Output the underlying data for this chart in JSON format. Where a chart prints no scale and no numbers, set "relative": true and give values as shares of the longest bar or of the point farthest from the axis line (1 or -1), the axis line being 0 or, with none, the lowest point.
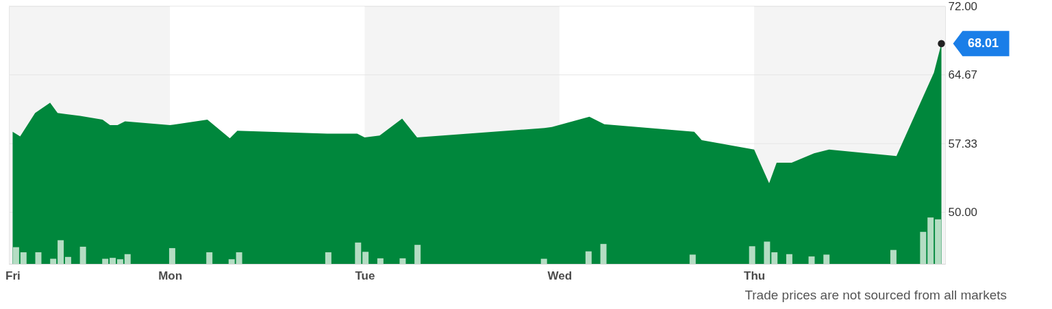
{
  "chart_data": [
    {
      "type": "area",
      "color": "#00873c",
      "ylim": [
        44.5,
        72
      ],
      "yticks": [
        {
          "value": 50,
          "label": "50.00"
        },
        57.33,
        64.67,
        {
          "value": 72,
          "label": "72.00"
        }
      ],
      "grid": "y",
      "categories": [
        "Fri",
        null,
        null,
        null,
        null,
        null,
        null,
        null,
        null,
        null,
        null,
        null,
        null,
        null,
        null,
        null,
        null,
        null,
        null,
        null,
        null,
        "Mon",
        null,
        null,
        null,
        null,
        null,
        null,
        null,
        null,
        null,
        null,
        null,
        null,
        null,
        null,
        null,
        null,
        null,
        null,
        null,
        null,
        null,
        null,
        null,
        null,
        null,
        "Tue",
        null,
        null,
        null,
        null,
        null,
        null,
        null,
        null,
        null,
        null,
        null,
        null,
        null,
        null,
        null,
        null,
        null,
        null,
        null,
        null,
        null,
        null,
        null,
        null,
        null,
        "Wed",
        null,
        null,
        null,
        null,
        null,
        null,
        null,
        null,
        null,
        null,
        null,
        null,
        null,
        null,
        null,
        null,
        null,
        null,
        null,
        null,
        null,
        null,
        null,
        null,
        null,
        "Thu",
        null,
        null,
        null,
        null,
        null,
        null,
        null,
        null,
        null,
        null,
        null,
        null,
        null,
        null,
        null,
        null,
        null,
        null,
        null,
        null,
        null,
        null,
        null,
        null,
        null
      ],
      "values": [
        58.6,
        58.1,
        null,
        60.6,
        null,
        61.7,
        60.6,
        60.5,
        null,
        60.3,
        null,
        null,
        59.9,
        59.3,
        59.3,
        59.7,
        null,
        null,
        null,
        null,
        null,
        59.3,
        null,
        null,
        null,
        null,
        59.9,
        null,
        null,
        57.9,
        58.7,
        null,
        null,
        null,
        null,
        null,
        null,
        null,
        null,
        null,
        null,
        null,
        58.4,
        null,
        null,
        null,
        58.4,
        58.0,
        null,
        58.2,
        null,
        null,
        60.0,
        null,
        58.0,
        null,
        null,
        null,
        null,
        null,
        null,
        null,
        null,
        null,
        null,
        null,
        null,
        null,
        null,
        null,
        null,
        59.0,
        59.1,
        null,
        null,
        null,
        null,
        60.2,
        null,
        59.4,
        null,
        null,
        null,
        null,
        null,
        null,
        null,
        null,
        null,
        null,
        null,
        58.6,
        57.7,
        null,
        null,
        null,
        null,
        null,
        null,
        56.7,
        null,
        53.1,
        55.3,
        null,
        55.3,
        null,
        null,
        56.3,
        null,
        56.7,
        null,
        null,
        null,
        null,
        null,
        null,
        null,
        null,
        56.0,
        null,
        null,
        null,
        null,
        64.9,
        68.01
      ],
      "value_labels": [
        null,
        null,
        null,
        null,
        null,
        null,
        null,
        null,
        null,
        null,
        null,
        null,
        null,
        null,
        null,
        null,
        null,
        null,
        null,
        null,
        null,
        null,
        null,
        null,
        null,
        null,
        null,
        null,
        null,
        null,
        null,
        null,
        null,
        null,
        null,
        null,
        null,
        null,
        null,
        null,
        null,
        null,
        null,
        null,
        null,
        null,
        null,
        null,
        null,
        null,
        null,
        null,
        null,
        null,
        null,
        null,
        null,
        null,
        null,
        null,
        null,
        null,
        null,
        null,
        null,
        null,
        null,
        null,
        null,
        null,
        null,
        null,
        null,
        null,
        null,
        null,
        null,
        null,
        null,
        null,
        null,
        null,
        null,
        null,
        null,
        null,
        null,
        null,
        null,
        null,
        null,
        null,
        null,
        null,
        null,
        null,
        null,
        null,
        null,
        null,
        null,
        null,
        null,
        null,
        null,
        null,
        null,
        null,
        null,
        null,
        null,
        null,
        null,
        null,
        null,
        null,
        null,
        null,
        null,
        null,
        null,
        null,
        null,
        null,
        "68.01"
      ],
      "bands": [
        {
          "axis": "x",
          "from": "Mon",
          "to": "Tue",
          "color": "#ffffff"
        },
        {
          "axis": "x",
          "from": "Wed",
          "to": "Thu",
          "color": "#ffffff"
        }
      ],
      "annotations": [
        "Trade prices are not sourced from all markets"
      ]
    },
    {
      "type": "bar",
      "relative": true,
      "color": "#b4ddc3",
      "categories": [
        null,
        null,
        null,
        null,
        null,
        null,
        null,
        null,
        null,
        null,
        null,
        null,
        null,
        null,
        null,
        null,
        null,
        null,
        null,
        null,
        null,
        null,
        null,
        null,
        null,
        null,
        null,
        null,
        null,
        null,
        null,
        null,
        null,
        null,
        null,
        null,
        null,
        null,
        null,
        null,
        null,
        null,
        null,
        null,
        null,
        null,
        null,
        null,
        null,
        null,
        null,
        null,
        null,
        null,
        null,
        null,
        null,
        null,
        null,
        null,
        null,
        null,
        null,
        null,
        null,
        null,
        null,
        null,
        null,
        null,
        null,
        null,
        null,
        null,
        null,
        null,
        null,
        null,
        null,
        null,
        null,
        null,
        null,
        null,
        null,
        null,
        null,
        null,
        null,
        null,
        null,
        null,
        null,
        null,
        null,
        null,
        null,
        null,
        null,
        null,
        null,
        null,
        null,
        null,
        null,
        null,
        null,
        null,
        null,
        null,
        null,
        null,
        null,
        null,
        null,
        null,
        null,
        null,
        null,
        null,
        null,
        null,
        null,
        null,
        null
      ],
      "values": [
        0.36,
        0.25,
        null,
        0.25,
        null,
        0.11,
        0.51,
        0.15,
        null,
        0.37,
        null,
        null,
        0.11,
        0.13,
        0.1,
        0.21,
        null,
        null,
        null,
        null,
        null,
        0.34,
        null,
        null,
        null,
        null,
        0.25,
        null,
        null,
        0.1,
        0.25,
        null,
        null,
        null,
        null,
        null,
        null,
        null,
        null,
        null,
        null,
        null,
        0.25,
        null,
        null,
        null,
        0.46,
        0.26,
        null,
        0.12,
        null,
        null,
        0.12,
        null,
        0.41,
        null,
        null,
        null,
        null,
        null,
        null,
        null,
        null,
        null,
        null,
        null,
        null,
        null,
        null,
        null,
        null,
        0.11,
        null,
        null,
        null,
        null,
        null,
        0.27,
        null,
        0.43,
        null,
        null,
        null,
        null,
        null,
        null,
        null,
        null,
        null,
        null,
        null,
        0.2,
        null,
        null,
        null,
        null,
        null,
        null,
        null,
        0.38,
        null,
        0.48,
        0.25,
        null,
        0.21,
        null,
        null,
        0.16,
        null,
        0.2,
        null,
        null,
        null,
        null,
        null,
        null,
        null,
        null,
        0.3,
        null,
        null,
        null,
        0.69,
        1,
        0.96
      ]
    }
  ]
}
